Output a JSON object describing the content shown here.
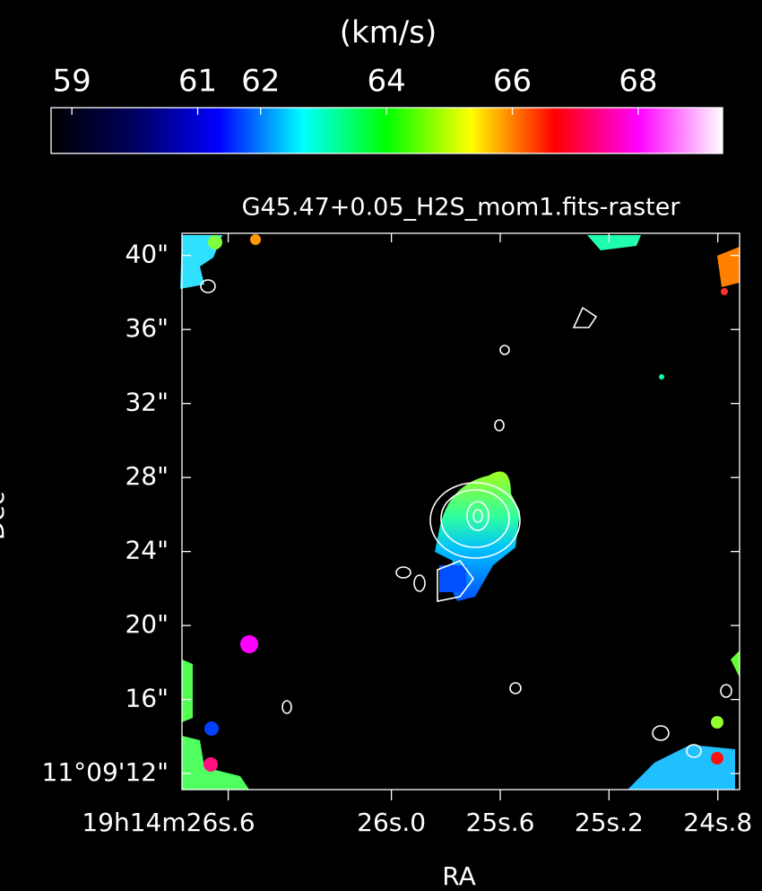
{
  "chart_data": {
    "type": "image",
    "title": "G45.47+0.05_H2S_mom1.fits-raster",
    "colorbar": {
      "label": "(km/s)",
      "clim": [
        58.67,
        69.34
      ],
      "ticks": [
        59,
        61,
        62,
        64,
        66,
        68
      ],
      "colors": [
        "#000000",
        "#000060",
        "#0000ff",
        "#00ffff",
        "#00ff00",
        "#ffff00",
        "#ff0000",
        "#ff00ff",
        "#ffffff"
      ]
    },
    "xlabel": "RA",
    "ylabel": "Dec",
    "xlim": [
      26.77,
      24.72
    ],
    "xticks": [
      {
        "value": 26.6,
        "label": "19h14m26s.6"
      },
      {
        "value": 26.0,
        "label": "26s.0"
      },
      {
        "value": 25.6,
        "label": "25s.6"
      },
      {
        "value": 25.2,
        "label": "25s.2"
      },
      {
        "value": 24.8,
        "label": "24s.8"
      }
    ],
    "ylim": [
      11.13,
      41.2
    ],
    "yticks": [
      {
        "value": 40,
        "label": "40\""
      },
      {
        "value": 36,
        "label": "36\""
      },
      {
        "value": 32,
        "label": "32\""
      },
      {
        "value": 28,
        "label": "28\""
      },
      {
        "value": 24,
        "label": "24\""
      },
      {
        "value": 20,
        "label": "20\""
      },
      {
        "value": 16,
        "label": "16\""
      },
      {
        "value": 12,
        "label": "11°09'12\""
      }
    ]
  }
}
